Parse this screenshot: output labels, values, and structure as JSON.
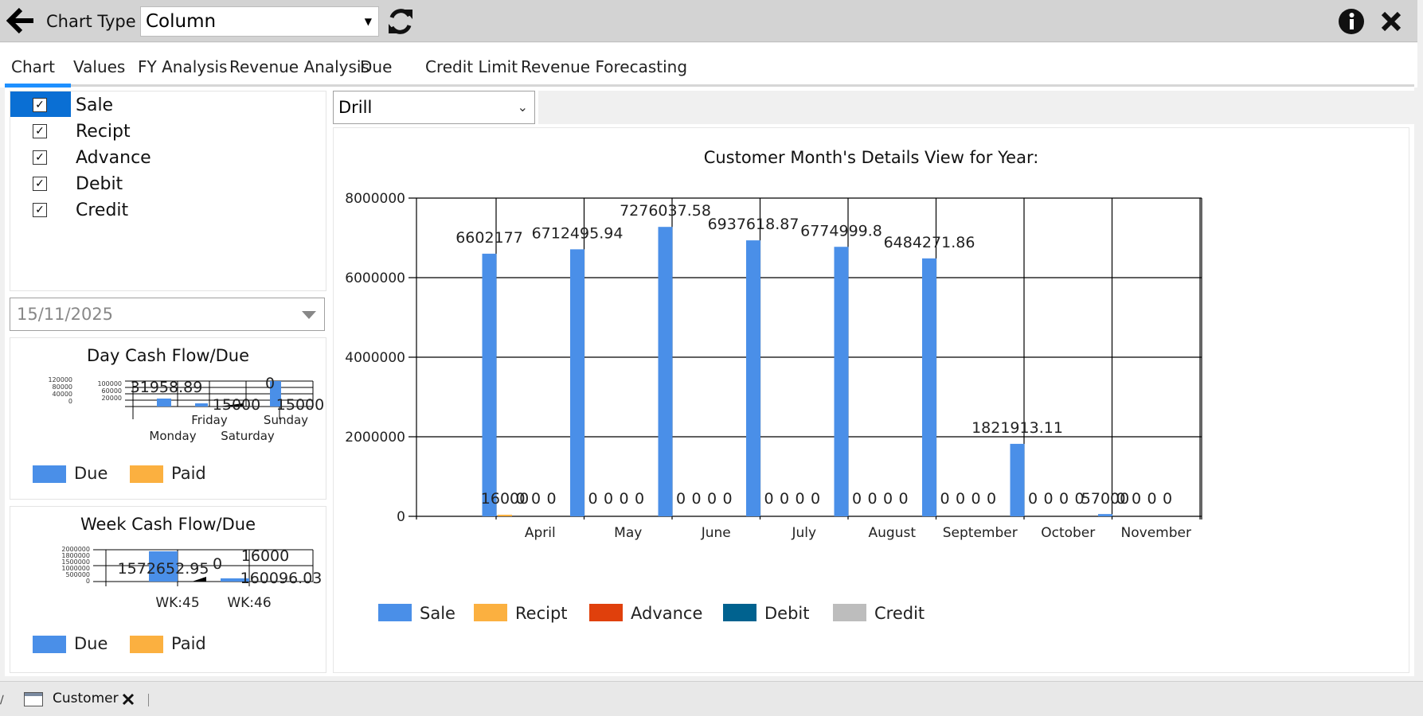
{
  "header": {
    "chart_type_label": "Chart Type",
    "chart_type_value": "Column"
  },
  "tabs": [
    {
      "label": "Chart",
      "selected": true
    },
    {
      "label": "Values"
    },
    {
      "label": "FY Analysis"
    },
    {
      "label": "Revenue Analysis"
    },
    {
      "label": "Due"
    },
    {
      "label": "Credit Limit"
    },
    {
      "label": "Revenue Forecasting"
    }
  ],
  "series_list": [
    {
      "label": "Sale",
      "checked": true
    },
    {
      "label": "Recipt",
      "checked": true
    },
    {
      "label": "Advance",
      "checked": true
    },
    {
      "label": "Debit",
      "checked": true
    },
    {
      "label": "Credit",
      "checked": true
    }
  ],
  "date_picker": {
    "value": "15/11/2025"
  },
  "drill_select": {
    "value": "Drill"
  },
  "day_chart": {
    "title": "Day Cash Flow/Due",
    "legend": [
      {
        "label": "Due",
        "color": "#4a8fe8"
      },
      {
        "label": "Paid",
        "color": "#fbb040"
      }
    ],
    "ytick_labels": [
      "120000",
      "80000",
      "40000",
      "0"
    ],
    "ytick_labels_2": [
      "100000",
      "60000",
      "20000"
    ],
    "categories_top": [
      "Friday",
      "Sunday"
    ],
    "categories_bottom": [
      "Monday",
      "Saturday"
    ],
    "data_labels": [
      "31958.89",
      "15000",
      "0",
      "15000"
    ]
  },
  "week_chart": {
    "title": "Week Cash Flow/Due",
    "legend": [
      {
        "label": "Due",
        "color": "#4a8fe8"
      },
      {
        "label": "Paid",
        "color": "#fbb040"
      }
    ],
    "ytick_labels": [
      "2000000",
      "1800000",
      "1500000",
      "1000000",
      "500000",
      "0"
    ],
    "categories": [
      "WK:45",
      "WK:46"
    ],
    "data_labels": [
      "1572652.95",
      "0",
      "16000",
      "160096.03"
    ]
  },
  "chart_data": {
    "type": "bar",
    "title": "Customer Month's Details View for Year:",
    "categories": [
      "April",
      "May",
      "June",
      "July",
      "August",
      "September",
      "October",
      "November"
    ],
    "ylim": [
      0,
      8000000
    ],
    "yticks": [
      0,
      2000000,
      4000000,
      6000000,
      8000000
    ],
    "ytick_labels": [
      "0",
      "2000000",
      "4000000",
      "6000000",
      "8000000"
    ],
    "legend_position": "bottom-left",
    "grid": true,
    "series": [
      {
        "name": "Sale",
        "color": "#4a8fe8",
        "values": [
          6602177,
          6712495.94,
          7276037.58,
          6937618.87,
          6774999.8,
          6484271.86,
          1821913.11,
          57000
        ],
        "labels": [
          "6602177",
          "6712495.94",
          "7276037.58",
          "6937618.87",
          "6774999.8",
          "6484271.86",
          "1821913.11",
          "57000"
        ]
      },
      {
        "name": "Recipt",
        "color": "#fbb040",
        "values": [
          16000,
          0,
          0,
          0,
          0,
          0,
          0,
          0
        ],
        "labels": [
          "16000",
          "0",
          "0",
          "0",
          "0",
          "0",
          "0",
          "0"
        ]
      },
      {
        "name": "Advance",
        "color": "#e0400c",
        "values": [
          0,
          0,
          0,
          0,
          0,
          0,
          0,
          0
        ],
        "labels": [
          "0",
          "0",
          "0",
          "0",
          "0",
          "0",
          "0",
          "0"
        ]
      },
      {
        "name": "Debit",
        "color": "#00628f",
        "values": [
          0,
          0,
          0,
          0,
          0,
          0,
          0,
          0
        ],
        "labels": [
          "0",
          "0",
          "0",
          "0",
          "0",
          "0",
          "0",
          "0"
        ]
      },
      {
        "name": "Credit",
        "color": "#bdbdbd",
        "values": [
          0,
          0,
          0,
          0,
          0,
          0,
          0,
          0
        ],
        "labels": [
          "0",
          "0",
          "0",
          "0",
          "0",
          "0",
          "0",
          "0"
        ]
      }
    ]
  },
  "bottom_tab": {
    "label": "Customer"
  }
}
